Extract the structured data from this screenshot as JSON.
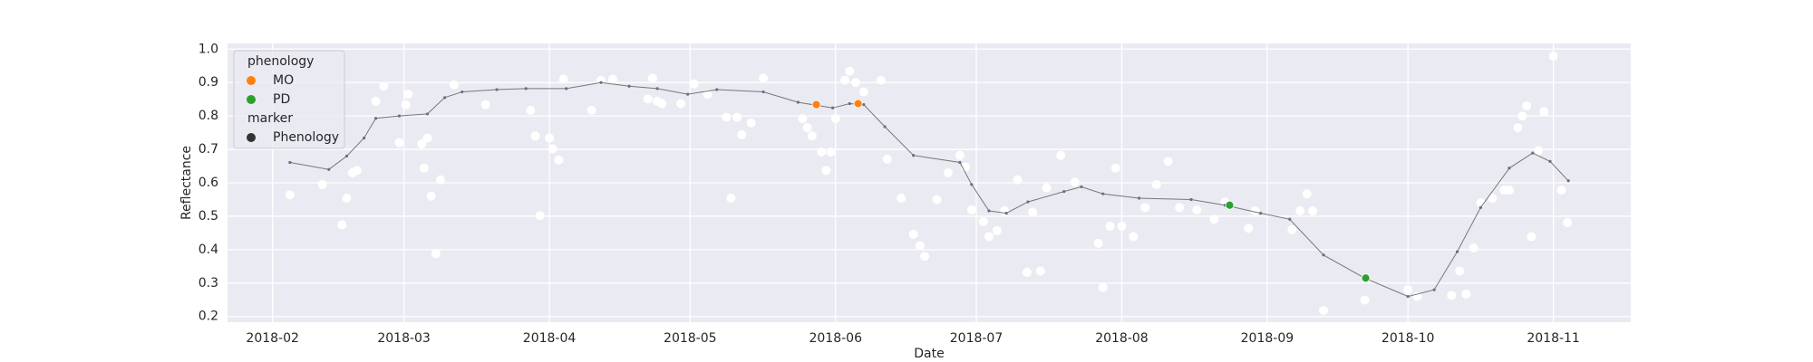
{
  "chart_data": {
    "type": "scatter",
    "xlabel": "Date",
    "ylabel": "Reflectance",
    "xlim": [
      22.4,
      321.5
    ],
    "ylim": [
      0.183,
      1.017
    ],
    "xticks": [
      {
        "value": 32,
        "label": "2018-02"
      },
      {
        "value": 60,
        "label": "2018-03"
      },
      {
        "value": 91,
        "label": "2018-04"
      },
      {
        "value": 121,
        "label": "2018-05"
      },
      {
        "value": 152,
        "label": "2018-06"
      },
      {
        "value": 182,
        "label": "2018-07"
      },
      {
        "value": 213,
        "label": "2018-08"
      },
      {
        "value": 244,
        "label": "2018-09"
      },
      {
        "value": 274,
        "label": "2018-10"
      },
      {
        "value": 305,
        "label": "2018-11"
      }
    ],
    "yticks": [
      0.2,
      0.3,
      0.4,
      0.5,
      0.6,
      0.7,
      0.8,
      0.9,
      {
        "value": 1.0,
        "label": "1.0"
      }
    ],
    "grid": true,
    "legend": {
      "corner": "upper left",
      "title": "phenology",
      "subtitle": "marker",
      "marker_entry": "Phenology",
      "marker_color": "#333333"
    },
    "series": [
      {
        "type": "scatter",
        "color": "#ffffff",
        "x": [
          35.7,
          42.6,
          46.8,
          47.8,
          49,
          50,
          54,
          55.7,
          59,
          60.4,
          60.9,
          63.8,
          64.3,
          65,
          65.8,
          66.8,
          67.8,
          70.7,
          77.4,
          87,
          88,
          89,
          91,
          91.7,
          93,
          94,
          100,
          102,
          104.5,
          112,
          113,
          114,
          115,
          119,
          121.8,
          124.7,
          128.7,
          129.7,
          131,
          132,
          134,
          136.6,
          145,
          146,
          147,
          149,
          150,
          151,
          152,
          154,
          155,
          156.3,
          158,
          161.7,
          163,
          166,
          168.6,
          170,
          171,
          173.6,
          176,
          178.5,
          179.7,
          181,
          183.5,
          184.7,
          186.4,
          188,
          190.8,
          192.8,
          194,
          195.7,
          197,
          200,
          203,
          208,
          209,
          210.5,
          211.7,
          213,
          215.5,
          218,
          220.4,
          222.9,
          225.3,
          229,
          232.7,
          235,
          240,
          241.4,
          249.3,
          251,
          252.5,
          253.7,
          256,
          264.8,
          274,
          276,
          283.3,
          285,
          286.4,
          288,
          289.5,
          292,
          294.5,
          295.6,
          297.4,
          298.4,
          299.3,
          300.3,
          301.8,
          303,
          305,
          306.7,
          308
        ],
        "values": [
          0.564,
          0.595,
          0.474,
          0.554,
          0.63,
          0.637,
          0.844,
          0.889,
          0.72,
          0.834,
          0.865,
          0.716,
          0.644,
          0.734,
          0.56,
          0.388,
          0.609,
          0.893,
          0.834,
          0.817,
          0.74,
          0.502,
          0.734,
          0.702,
          0.668,
          0.91,
          0.817,
          0.907,
          0.91,
          0.851,
          0.913,
          0.844,
          0.837,
          0.837,
          0.896,
          0.865,
          0.796,
          0.554,
          0.796,
          0.744,
          0.779,
          0.913,
          0.792,
          0.765,
          0.74,
          0.692,
          0.637,
          0.692,
          0.792,
          0.907,
          0.934,
          0.9,
          0.872,
          0.907,
          0.671,
          0.554,
          0.446,
          0.412,
          0.38,
          0.55,
          0.63,
          0.682,
          0.647,
          0.519,
          0.484,
          0.439,
          0.457,
          0.516,
          0.609,
          0.332,
          0.512,
          0.336,
          0.585,
          0.682,
          0.602,
          0.419,
          0.287,
          0.47,
          0.644,
          0.47,
          0.439,
          0.526,
          0.595,
          0.664,
          0.526,
          0.519,
          0.491,
          0.543,
          0.464,
          0.516,
          0.46,
          0.516,
          0.567,
          0.516,
          0.218,
          0.249,
          0.28,
          0.26,
          0.263,
          0.336,
          0.267,
          0.405,
          0.54,
          0.554,
          0.578,
          0.578,
          0.765,
          0.8,
          0.83,
          0.439,
          0.696,
          0.813,
          0.979,
          0.578,
          0.481
        ]
      },
      {
        "type": "line",
        "color": "#5d7585",
        "x": [
          35.7,
          44,
          47.8,
          51.5,
          54,
          59,
          65,
          68.7,
          72.4,
          79.8,
          86,
          94.6,
          102,
          108,
          114,
          120.5,
          126.7,
          136.6,
          144,
          151.4,
          155,
          158,
          162.5,
          168.6,
          178.5,
          181,
          184.7,
          188.4,
          193,
          200.7,
          204.4,
          209,
          216.7,
          227.8,
          235,
          242.6,
          248.8,
          256,
          264.8,
          274,
          279.6,
          284.5,
          289.5,
          295.6,
          300.6,
          304.3,
          308.2
        ],
        "values": [
          0.661,
          0.64,
          0.68,
          0.734,
          0.793,
          0.8,
          0.806,
          0.855,
          0.872,
          0.879,
          0.882,
          0.882,
          0.9,
          0.889,
          0.882,
          0.865,
          0.879,
          0.872,
          0.841,
          0.824,
          0.837,
          0.834,
          0.768,
          0.682,
          0.661,
          0.595,
          0.516,
          0.509,
          0.543,
          0.574,
          0.588,
          0.567,
          0.554,
          0.55,
          0.533,
          0.509,
          0.491,
          0.384,
          0.315,
          0.26,
          0.28,
          0.394,
          0.526,
          0.644,
          0.689,
          0.664,
          0.606
        ]
      },
      {
        "type": "scatter",
        "name": "MO",
        "color": "#ff7f0e",
        "x": [
          147.9,
          156.8
        ],
        "values": [
          0.834,
          0.837
        ]
      },
      {
        "type": "scatter",
        "name": "PD",
        "color": "#2ca02c",
        "x": [
          236,
          265
        ],
        "values": [
          0.533,
          0.315
        ]
      }
    ]
  }
}
